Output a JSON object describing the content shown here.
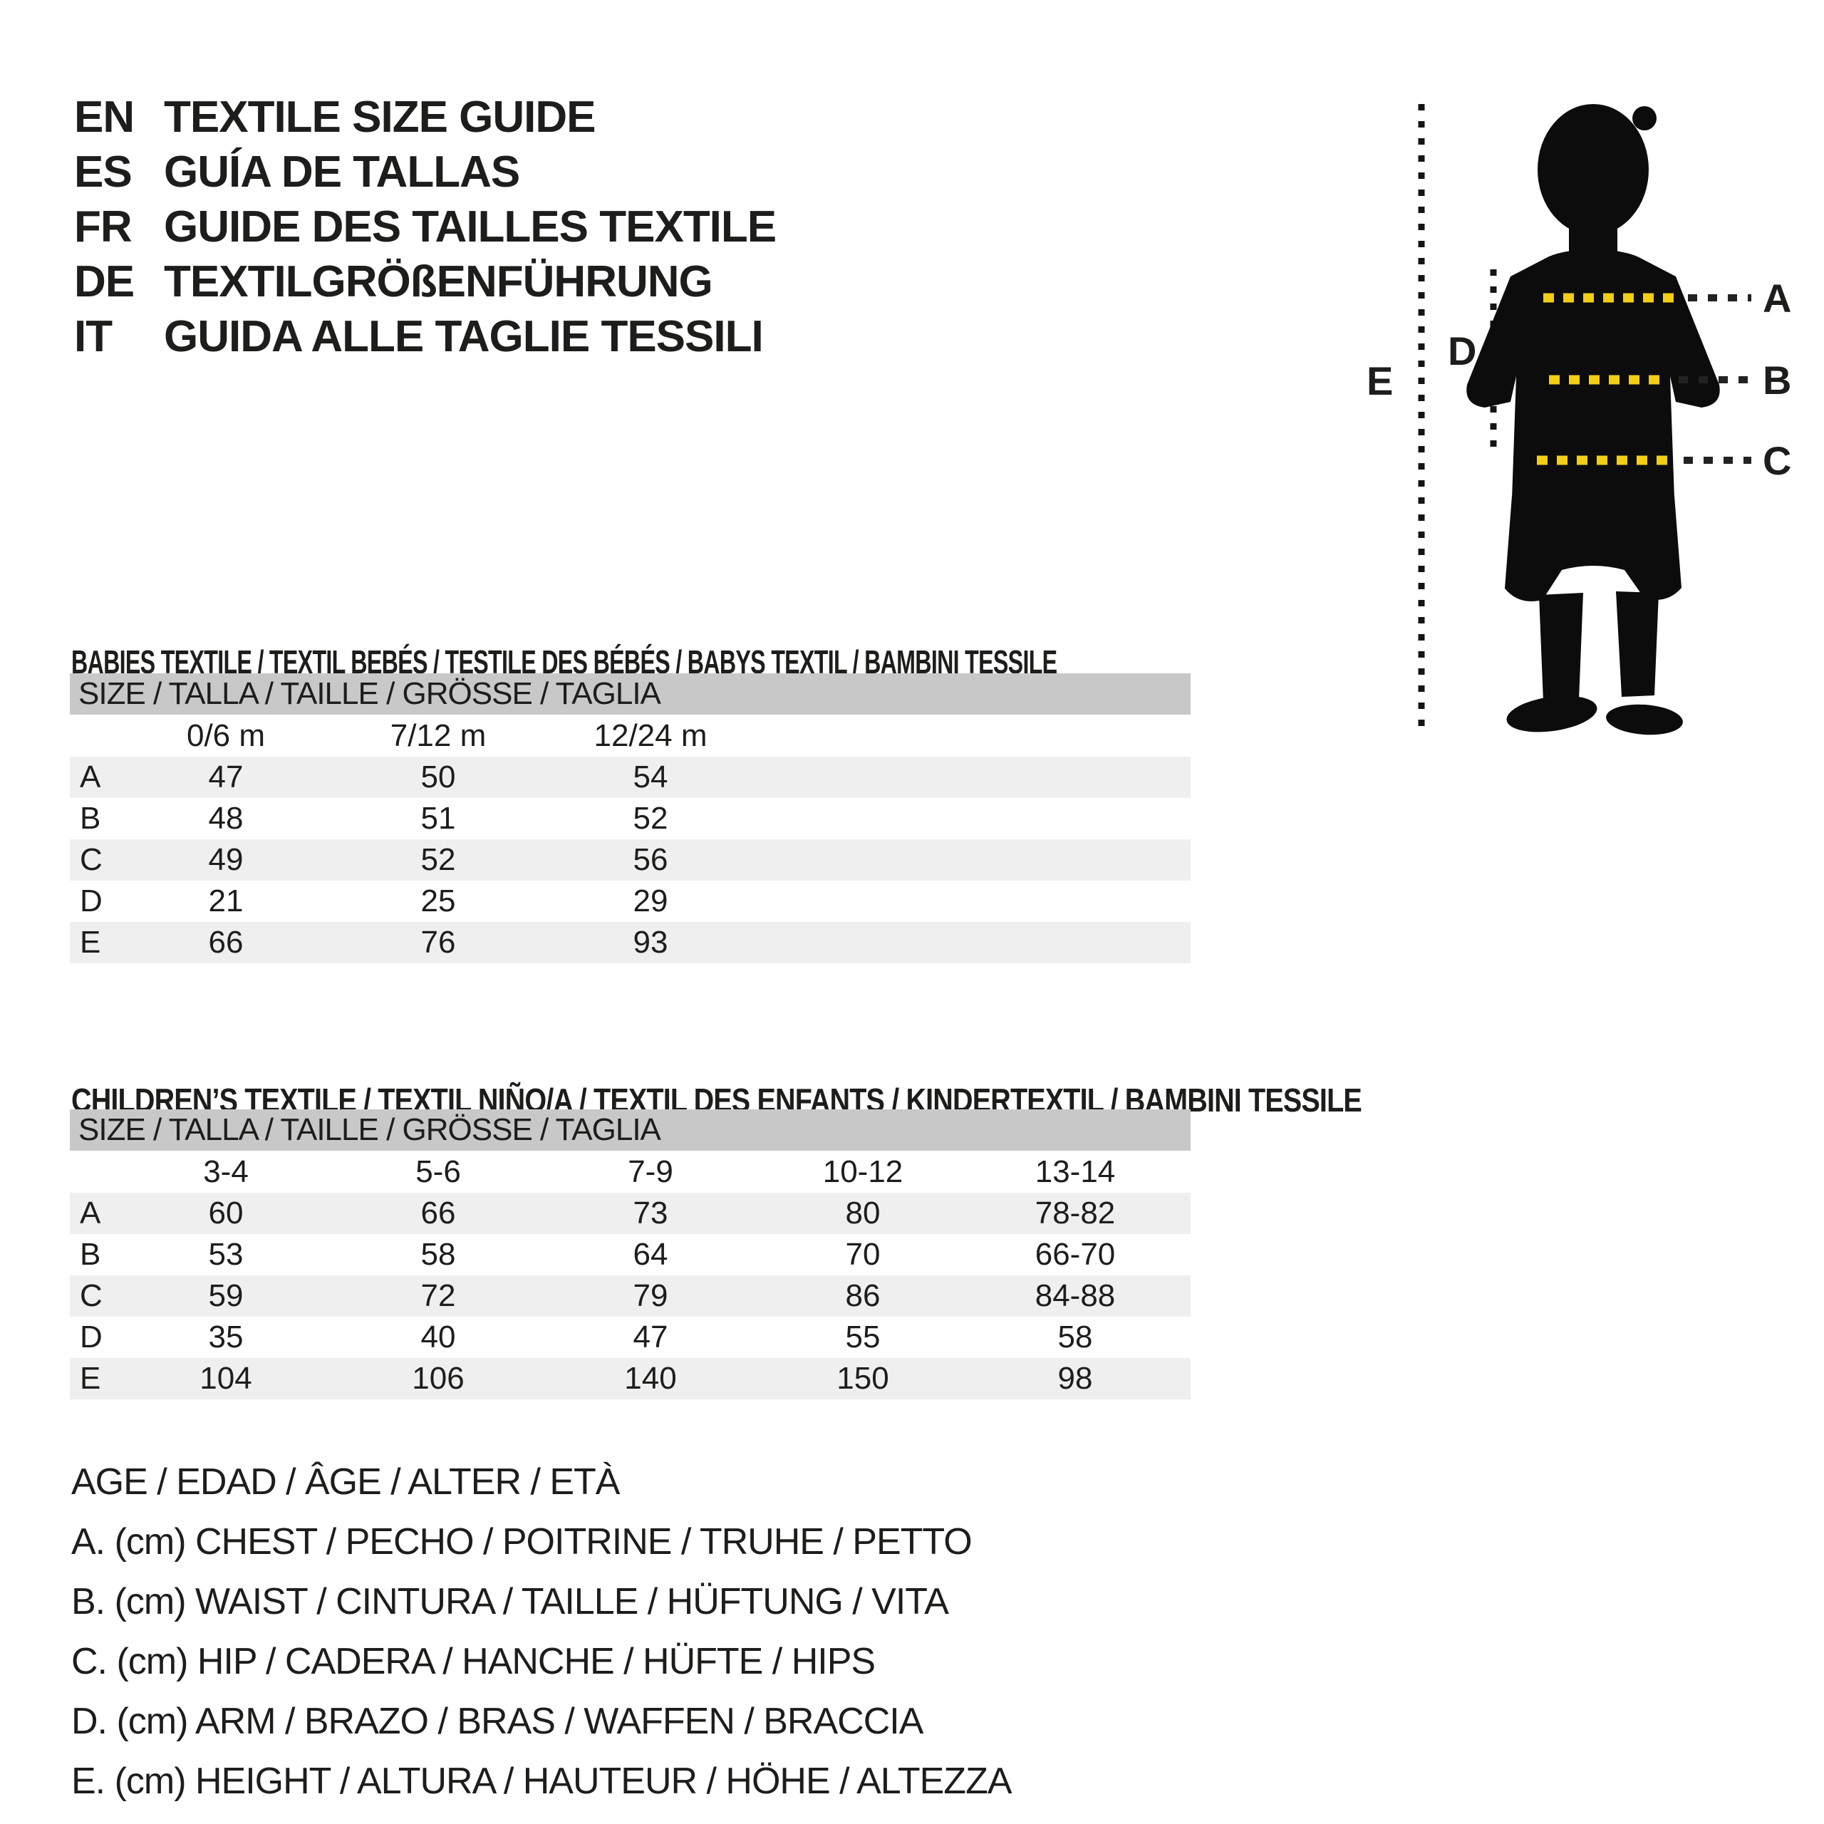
{
  "page": {
    "background": "#ffffff",
    "text_color": "#1d1d1b",
    "accent_yellow": "#f2ce15",
    "silhouette_color": "#0c0c0c",
    "header_bar_gray": "#c8c8c8",
    "row_stripe_gray": "#efefef"
  },
  "languages": [
    {
      "code": "EN",
      "title": "TEXTILE SIZE GUIDE"
    },
    {
      "code": "ES",
      "title": "GUÍA DE TALLAS"
    },
    {
      "code": "FR",
      "title": "GUIDE DES TAILLES TEXTILE"
    },
    {
      "code": "DE",
      "title": "TEXTILGRÖßENFÜHRUNG"
    },
    {
      "code": "IT",
      "title": "GUIDA ALLE TAGLIE TESSILI"
    }
  ],
  "figure": {
    "description": "child-silhouette-with-measurement-lines",
    "labels": [
      "A",
      "B",
      "C",
      "D",
      "E"
    ]
  },
  "babies_table": {
    "section_title": "BABIES TEXTILE / TEXTIL BEBÉS / TESTILE DES BÉBÉS / BABYS TEXTIL / BAMBINI TESSILE",
    "header": "SIZE / TALLA / TAILLE / GRÖSSE / TAGLIA",
    "columns": [
      "0/6 m",
      "7/12 m",
      "12/24 m"
    ],
    "rows": [
      {
        "label": "A",
        "values": [
          "47",
          "50",
          "54"
        ]
      },
      {
        "label": "B",
        "values": [
          "48",
          "51",
          "52"
        ]
      },
      {
        "label": "C",
        "values": [
          "49",
          "52",
          "56"
        ]
      },
      {
        "label": "D",
        "values": [
          "21",
          "25",
          "29"
        ]
      },
      {
        "label": "E",
        "values": [
          "66",
          "76",
          "93"
        ]
      }
    ]
  },
  "children_table": {
    "section_title": "CHILDREN’S TEXTILE / TEXTIL NIÑO/A / TEXTIL DES ENFANTS / KINDERTEXTIL / BAMBINI TESSILE",
    "header": "SIZE / TALLA / TAILLE / GRÖSSE / TAGLIA",
    "columns": [
      "3-4",
      "5-6",
      "7-9",
      "10-12",
      "13-14"
    ],
    "rows": [
      {
        "label": "A",
        "values": [
          "60",
          "66",
          "73",
          "80",
          "78-82"
        ]
      },
      {
        "label": "B",
        "values": [
          "53",
          "58",
          "64",
          "70",
          "66-70"
        ]
      },
      {
        "label": "C",
        "values": [
          "59",
          "72",
          "79",
          "86",
          "84-88"
        ]
      },
      {
        "label": "D",
        "values": [
          "35",
          "40",
          "47",
          "55",
          "58"
        ]
      },
      {
        "label": "E",
        "values": [
          "104",
          "106",
          "140",
          "150",
          "98"
        ]
      }
    ]
  },
  "legend": [
    "AGE / EDAD / ÂGE / ALTER / ETÀ",
    "A. (cm) CHEST / PECHO / POITRINE / TRUHE / PETTO",
    "B. (cm) WAIST / CINTURA / TAILLE / HÜFTUNG / VITA",
    "C. (cm) HIP / CADERA / HANCHE / HÜFTE / HIPS",
    "D. (cm) ARM / BRAZO / BRAS / WAFFEN / BRACCIA",
    "E. (cm) HEIGHT / ALTURA / HAUTEUR / HÖHE / ALTEZZA"
  ]
}
